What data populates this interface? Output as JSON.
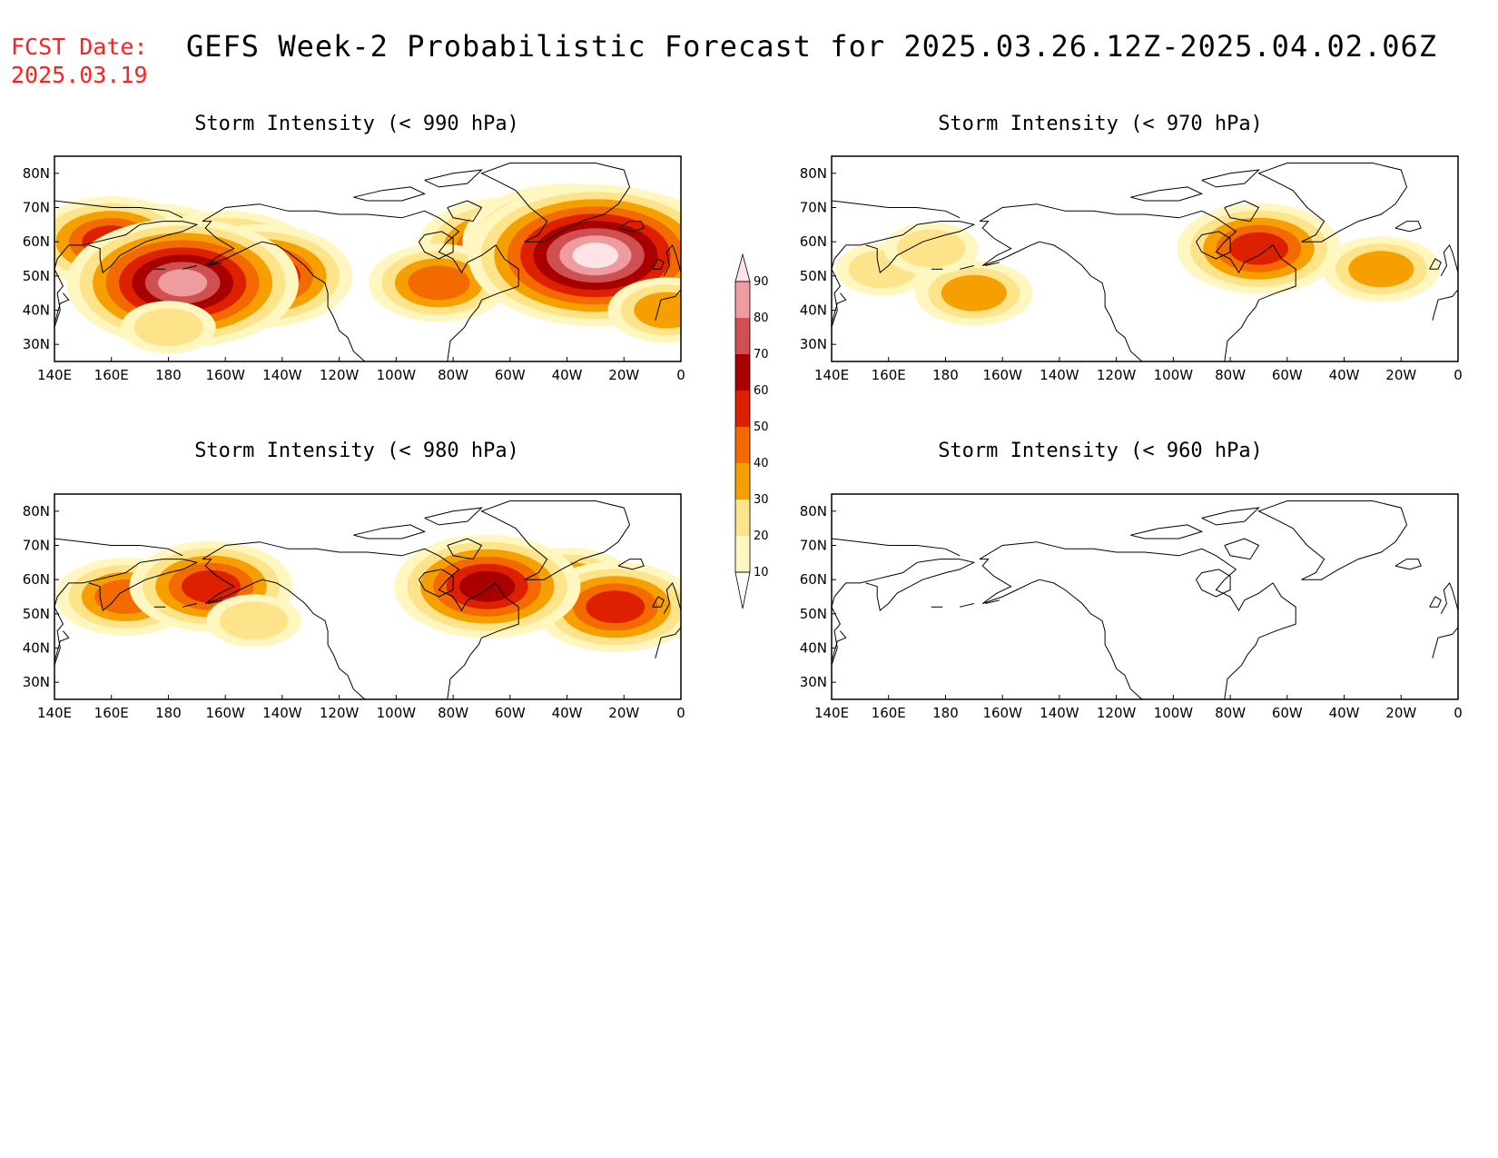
{
  "header": {
    "fcst_label": "FCST Date:",
    "fcst_date": "2025.03.19",
    "title": "GEFS Week-2 Probabilistic Forecast for 2025.03.26.12Z-2025.04.02.06Z"
  },
  "panels": [
    {
      "title": "Storm Intensity (< 990 hPa)",
      "threshold_hpa": 990
    },
    {
      "title": "Storm Intensity (< 970 hPa)",
      "threshold_hpa": 970
    },
    {
      "title": "Storm Intensity (< 980 hPa)",
      "threshold_hpa": 980
    },
    {
      "title": "Storm Intensity (< 960 hPa)",
      "threshold_hpa": 960
    }
  ],
  "map": {
    "lon_labels": [
      "140E",
      "160E",
      "180",
      "160W",
      "140W",
      "120W",
      "100W",
      "80W",
      "60W",
      "40W",
      "20W",
      "0"
    ],
    "lat_labels": [
      "80N",
      "70N",
      "60N",
      "50N",
      "40N",
      "30N"
    ],
    "lon_range_deg_east": [
      140,
      360
    ],
    "lat_range": [
      25,
      85
    ]
  },
  "colorbar": {
    "labels": [
      "10",
      "20",
      "30",
      "40",
      "50",
      "60",
      "70",
      "80",
      "90"
    ],
    "colors": [
      "#fff6c0",
      "#fde48a",
      "#f5a000",
      "#f26a00",
      "#dd2000",
      "#a80000",
      "#cf5050",
      "#ee9ca0",
      "#fde3e6"
    ]
  },
  "probability_regions": [
    [
      {
        "lon": 175,
        "lat": 56,
        "level": 5
      },
      {
        "lon": 200,
        "lat": 54,
        "level": 5
      },
      {
        "lon": 212,
        "lat": 50,
        "level": 5
      },
      {
        "lon": 160,
        "lat": 60,
        "level": 4
      },
      {
        "lon": 185,
        "lat": 48,
        "level": 7
      },
      {
        "lon": 300,
        "lat": 58,
        "level": 5
      },
      {
        "lon": 320,
        "lat": 60,
        "level": 6
      },
      {
        "lon": 340,
        "lat": 60,
        "level": 5
      },
      {
        "lon": 275,
        "lat": 48,
        "level": 3
      },
      {
        "lon": 330,
        "lat": 56,
        "level": 8
      },
      {
        "lon": 355,
        "lat": 40,
        "level": 2
      },
      {
        "lon": 180,
        "lat": 35,
        "level": 1
      }
    ],
    [
      {
        "lon": 158,
        "lat": 52,
        "level": 1
      },
      {
        "lon": 190,
        "lat": 45,
        "level": 2
      },
      {
        "lon": 290,
        "lat": 58,
        "level": 4
      },
      {
        "lon": 333,
        "lat": 52,
        "level": 2
      },
      {
        "lon": 175,
        "lat": 58,
        "level": 1
      }
    ],
    [
      {
        "lon": 165,
        "lat": 55,
        "level": 3
      },
      {
        "lon": 195,
        "lat": 58,
        "level": 4
      },
      {
        "lon": 210,
        "lat": 48,
        "level": 1
      },
      {
        "lon": 320,
        "lat": 58,
        "level": 3
      },
      {
        "lon": 337,
        "lat": 52,
        "level": 4
      },
      {
        "lon": 292,
        "lat": 58,
        "level": 5
      }
    ],
    []
  ]
}
